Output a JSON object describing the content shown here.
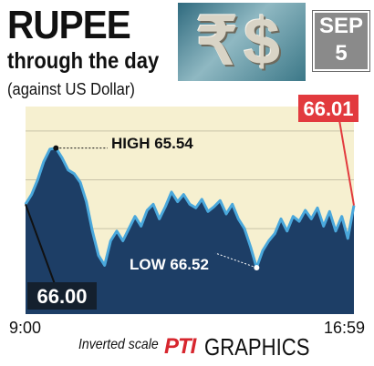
{
  "header": {
    "title": "RUPEE",
    "subtitle": "through the day",
    "note": "(against US Dollar)",
    "date_month": "SEP",
    "date_day": "5",
    "icons": [
      "rupee-sign-icon",
      "dollar-sign-icon"
    ]
  },
  "footer": {
    "scale_note": "Inverted scale",
    "brand_mark": "PTI",
    "brand_label": "GRAPHICS"
  },
  "colors": {
    "plot_background": "#f6f0d0",
    "area_fill": "#1d3e66",
    "line": "#4aa8dc",
    "open_label_background": "#14202e",
    "close_label_background": "#e23a3e"
  },
  "chart_data": {
    "type": "area",
    "inverted_y": true,
    "xlim": [
      "9:00",
      "16:59"
    ],
    "ylim": [
      66.9,
      65.2
    ],
    "x_tick_labels": [
      "9:00",
      "16:59"
    ],
    "grid": "horizontal",
    "open": {
      "time": "9:00",
      "value": "66.00"
    },
    "close": {
      "time": "16:59",
      "value": "66.01"
    },
    "high": {
      "label": "HIGH 65.54",
      "value": 65.54
    },
    "low": {
      "label": "LOW 66.52",
      "value": 66.52
    },
    "series": [
      {
        "values": [
          66.0,
          65.92,
          65.8,
          65.65,
          65.55,
          65.54,
          65.62,
          65.72,
          65.75,
          65.82,
          65.98,
          66.22,
          66.42,
          66.5,
          66.3,
          66.22,
          66.3,
          66.2,
          66.1,
          66.18,
          66.05,
          66.0,
          66.12,
          66.02,
          65.9,
          65.98,
          65.92,
          66.0,
          66.03,
          65.96,
          66.06,
          66.02,
          65.97,
          66.08,
          66.0,
          66.12,
          66.2,
          66.35,
          66.52,
          66.38,
          66.3,
          66.24,
          66.12,
          66.22,
          66.1,
          66.14,
          66.05,
          66.12,
          66.03,
          66.18,
          66.06,
          66.22,
          66.1,
          66.28,
          66.01
        ]
      }
    ]
  }
}
